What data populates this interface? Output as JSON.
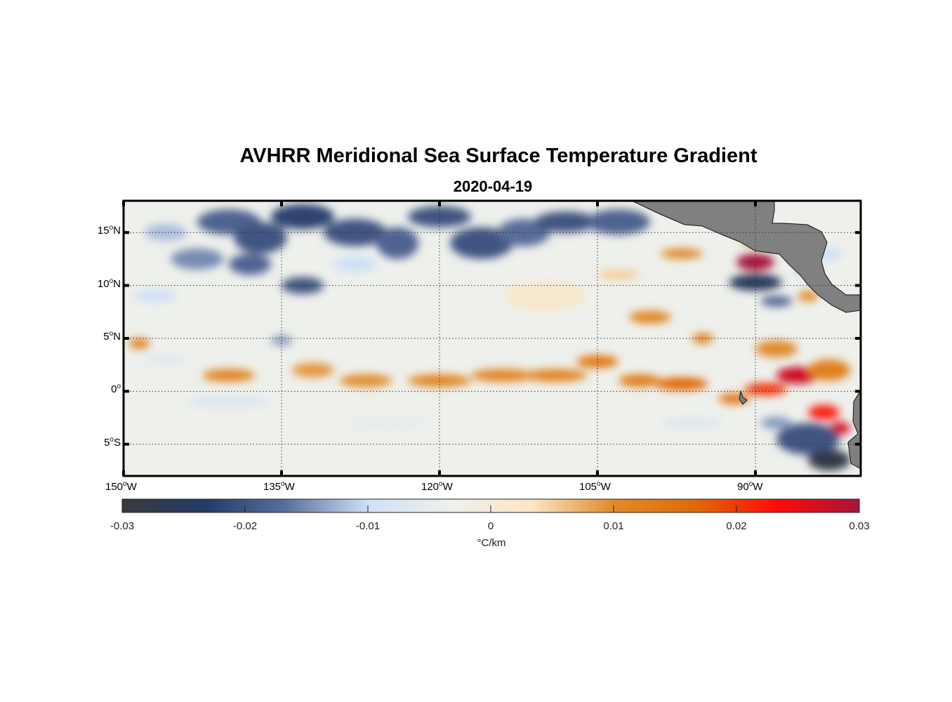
{
  "title": "AVHRR Meridional Sea Surface Temperature Gradient",
  "subtitle": "2020-04-19",
  "map": {
    "lon_range": [
      -150,
      -80
    ],
    "lat_range": [
      -8,
      18
    ],
    "lon_ticks": [
      {
        "value": -150,
        "deg": "150",
        "hemi": "W"
      },
      {
        "value": -135,
        "deg": "135",
        "hemi": "W"
      },
      {
        "value": -120,
        "deg": "120",
        "hemi": "W"
      },
      {
        "value": -105,
        "deg": "105",
        "hemi": "W"
      },
      {
        "value": -90,
        "deg": "90",
        "hemi": "W"
      }
    ],
    "lat_ticks": [
      {
        "value": 15,
        "deg": "15",
        "hemi": "N"
      },
      {
        "value": 10,
        "deg": "10",
        "hemi": "N"
      },
      {
        "value": 5,
        "deg": "5",
        "hemi": "N"
      },
      {
        "value": 0,
        "deg": "0",
        "hemi": ""
      },
      {
        "value": -5,
        "deg": "5",
        "hemi": "S"
      }
    ],
    "land_color": "#808080"
  },
  "colorbar": {
    "range": [
      -0.03,
      0.03
    ],
    "ticks": [
      "-0.03",
      "-0.02",
      "-0.01",
      "0",
      "0.01",
      "0.02",
      "0.03"
    ],
    "unit": "°C/km",
    "stops": [
      "#3a3a3c",
      "#243a66",
      "#5a6f9c",
      "#cfe0f5",
      "#eef0ec",
      "#fbe6c6",
      "#e08a2a",
      "#e06a05",
      "#ff0a0a",
      "#a51537"
    ]
  }
}
